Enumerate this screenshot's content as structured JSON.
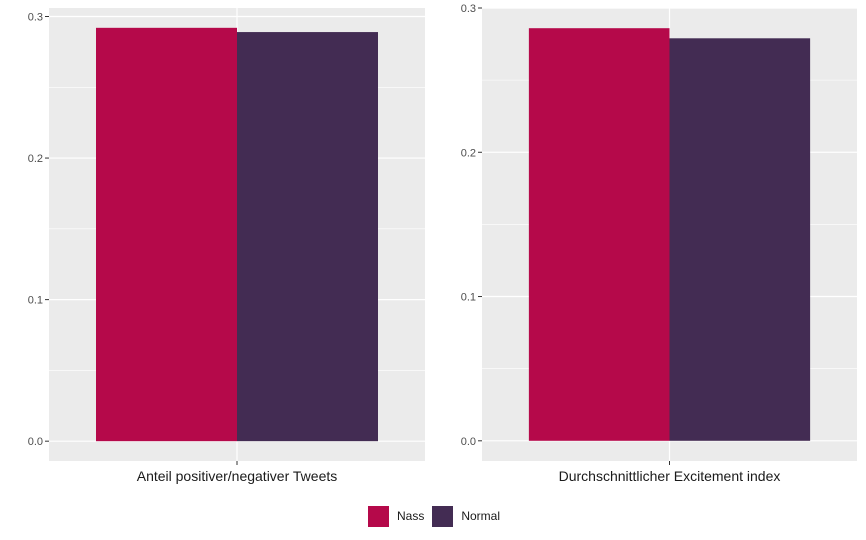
{
  "colors": {
    "Nass": "#b5094a",
    "Normal": "#432c53",
    "panel": "#ebebeb",
    "grid": "#ffffff"
  },
  "chart_data": [
    {
      "type": "bar",
      "categories": [
        "Anteil positiver/negativer Tweets"
      ],
      "series": [
        {
          "name": "Nass",
          "values": [
            0.292
          ]
        },
        {
          "name": "Normal",
          "values": [
            0.289
          ]
        }
      ],
      "ylim": [
        -0.014,
        0.306
      ],
      "yticks": [
        "0.0",
        "0.1",
        "0.2",
        "0.3"
      ],
      "grid": true
    },
    {
      "type": "bar",
      "categories": [
        "Durchschnittlicher Excitement index"
      ],
      "series": [
        {
          "name": "Nass",
          "values": [
            0.286
          ]
        },
        {
          "name": "Normal",
          "values": [
            0.279
          ]
        }
      ],
      "ylim": [
        -0.014,
        0.3
      ],
      "yticks": [
        "0.0",
        "0.1",
        "0.2",
        "0.3"
      ],
      "grid": true
    }
  ],
  "legend": {
    "position": "bottom",
    "items": [
      "Nass",
      "Normal"
    ]
  }
}
